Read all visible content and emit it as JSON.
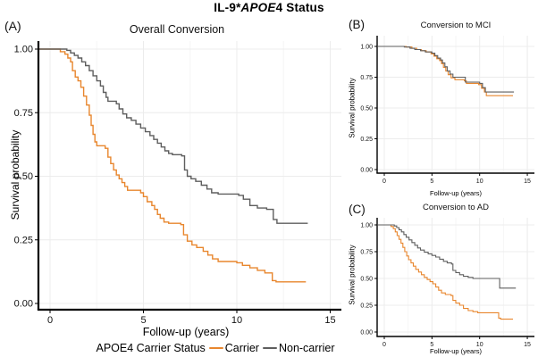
{
  "figure": {
    "title_prefix": "IL-9*",
    "title_italic": "APOE",
    "title_suffix": "4 Status"
  },
  "colors": {
    "carrier": "#E8862D",
    "noncarrier": "#5E5E5E",
    "grid_major": "#ECECEC",
    "grid_minor": "#F6F6F6",
    "axis": "#000000"
  },
  "legend": {
    "title": "APOE4 Carrier Status",
    "items": [
      {
        "label": "Carrier",
        "color_key": "carrier"
      },
      {
        "label": "Non-carrier",
        "color_key": "noncarrier"
      }
    ]
  },
  "chart_data": [
    {
      "id": "A",
      "panel_label": "(A)",
      "type": "line",
      "subtype": "kaplan-meier-step",
      "title": "Overall Conversion",
      "xlabel": "Follow-up (years)",
      "ylabel": "Survival probability",
      "xlim": [
        0,
        15
      ],
      "ylim": [
        0,
        1
      ],
      "grid": true,
      "xticks": [
        0,
        5,
        10,
        15
      ],
      "xtick_labels": [
        "0",
        "5",
        "10",
        "15"
      ],
      "yticks": [
        0,
        0.25,
        0.5,
        0.75,
        1.0
      ],
      "ytick_labels": [
        "0.00",
        "0.25",
        "0.50",
        "0.75",
        "1.00"
      ],
      "series": [
        {
          "name": "Carrier",
          "color_key": "carrier",
          "points": [
            [
              0,
              1.0
            ],
            [
              0.55,
              0.99
            ],
            [
              0.8,
              0.98
            ],
            [
              0.95,
              0.965
            ],
            [
              1.1,
              0.95
            ],
            [
              1.2,
              0.915
            ],
            [
              1.35,
              0.89
            ],
            [
              1.5,
              0.875
            ],
            [
              1.65,
              0.85
            ],
            [
              1.8,
              0.815
            ],
            [
              1.95,
              0.78
            ],
            [
              2.1,
              0.74
            ],
            [
              2.2,
              0.7
            ],
            [
              2.3,
              0.665
            ],
            [
              2.4,
              0.635
            ],
            [
              2.5,
              0.62
            ],
            [
              2.95,
              0.61
            ],
            [
              3.1,
              0.575
            ],
            [
              3.25,
              0.55
            ],
            [
              3.4,
              0.525
            ],
            [
              3.55,
              0.505
            ],
            [
              3.7,
              0.49
            ],
            [
              3.85,
              0.475
            ],
            [
              4.0,
              0.46
            ],
            [
              4.15,
              0.445
            ],
            [
              4.85,
              0.435
            ],
            [
              5.0,
              0.42
            ],
            [
              5.2,
              0.4
            ],
            [
              5.45,
              0.385
            ],
            [
              5.6,
              0.37
            ],
            [
              5.75,
              0.35
            ],
            [
              5.9,
              0.335
            ],
            [
              6.1,
              0.32
            ],
            [
              6.35,
              0.315
            ],
            [
              7.0,
              0.31
            ],
            [
              7.15,
              0.27
            ],
            [
              7.35,
              0.245
            ],
            [
              7.6,
              0.23
            ],
            [
              7.85,
              0.22
            ],
            [
              8.2,
              0.205
            ],
            [
              8.45,
              0.19
            ],
            [
              8.7,
              0.175
            ],
            [
              9.0,
              0.165
            ],
            [
              10.0,
              0.16
            ],
            [
              10.3,
              0.15
            ],
            [
              10.7,
              0.14
            ],
            [
              11.1,
              0.13
            ],
            [
              11.5,
              0.12
            ],
            [
              11.9,
              0.09
            ],
            [
              12.1,
              0.085
            ],
            [
              13.7,
              0.085
            ]
          ]
        },
        {
          "name": "Non-carrier",
          "color_key": "noncarrier",
          "points": [
            [
              0,
              1.0
            ],
            [
              0.9,
              0.995
            ],
            [
              1.1,
              0.985
            ],
            [
              1.3,
              0.975
            ],
            [
              1.5,
              0.965
            ],
            [
              1.7,
              0.95
            ],
            [
              1.9,
              0.935
            ],
            [
              2.1,
              0.915
            ],
            [
              2.3,
              0.895
            ],
            [
              2.5,
              0.875
            ],
            [
              2.7,
              0.855
            ],
            [
              2.85,
              0.83
            ],
            [
              3.0,
              0.81
            ],
            [
              3.1,
              0.795
            ],
            [
              3.55,
              0.785
            ],
            [
              3.7,
              0.765
            ],
            [
              3.9,
              0.745
            ],
            [
              4.1,
              0.73
            ],
            [
              4.35,
              0.72
            ],
            [
              4.6,
              0.705
            ],
            [
              4.85,
              0.69
            ],
            [
              5.1,
              0.675
            ],
            [
              5.35,
              0.66
            ],
            [
              5.55,
              0.645
            ],
            [
              5.75,
              0.63
            ],
            [
              5.95,
              0.615
            ],
            [
              6.15,
              0.6
            ],
            [
              6.35,
              0.59
            ],
            [
              6.55,
              0.585
            ],
            [
              7.05,
              0.58
            ],
            [
              7.2,
              0.525
            ],
            [
              7.35,
              0.5
            ],
            [
              7.55,
              0.49
            ],
            [
              7.8,
              0.48
            ],
            [
              8.1,
              0.465
            ],
            [
              8.4,
              0.45
            ],
            [
              8.65,
              0.435
            ],
            [
              9.0,
              0.43
            ],
            [
              10.1,
              0.425
            ],
            [
              10.35,
              0.41
            ],
            [
              10.7,
              0.385
            ],
            [
              11.1,
              0.375
            ],
            [
              11.6,
              0.37
            ],
            [
              11.95,
              0.33
            ],
            [
              12.15,
              0.315
            ],
            [
              13.8,
              0.315
            ]
          ]
        }
      ]
    },
    {
      "id": "B",
      "panel_label": "(B)",
      "type": "line",
      "subtype": "kaplan-meier-step",
      "title": "Conversion to MCI",
      "xlabel": "Follow-up (years)",
      "ylabel": "Survival probability",
      "xlim": [
        0,
        15
      ],
      "ylim": [
        0,
        1
      ],
      "grid": true,
      "xticks": [
        0,
        5,
        10,
        15
      ],
      "xtick_labels": [
        "0",
        "5",
        "10",
        "15"
      ],
      "yticks": [
        0,
        0.25,
        0.5,
        0.75,
        1.0
      ],
      "ytick_labels": [
        "0.00",
        "0.25",
        "0.50",
        "0.75",
        "1.00"
      ],
      "series": [
        {
          "name": "Carrier",
          "color_key": "carrier",
          "points": [
            [
              0,
              1.0
            ],
            [
              2.3,
              0.995
            ],
            [
              2.9,
              0.985
            ],
            [
              3.4,
              0.975
            ],
            [
              3.9,
              0.965
            ],
            [
              4.4,
              0.955
            ],
            [
              4.9,
              0.94
            ],
            [
              5.2,
              0.92
            ],
            [
              5.5,
              0.9
            ],
            [
              5.8,
              0.885
            ],
            [
              6.0,
              0.86
            ],
            [
              6.2,
              0.83
            ],
            [
              6.45,
              0.8
            ],
            [
              6.7,
              0.77
            ],
            [
              7.0,
              0.745
            ],
            [
              7.4,
              0.73
            ],
            [
              8.4,
              0.72
            ],
            [
              8.6,
              0.7
            ],
            [
              9.9,
              0.69
            ],
            [
              10.2,
              0.66
            ],
            [
              10.5,
              0.63
            ],
            [
              10.7,
              0.6
            ],
            [
              13.5,
              0.6
            ]
          ]
        },
        {
          "name": "Non-carrier",
          "color_key": "noncarrier",
          "points": [
            [
              0,
              1.0
            ],
            [
              2.1,
              0.995
            ],
            [
              2.7,
              0.985
            ],
            [
              3.2,
              0.975
            ],
            [
              3.8,
              0.965
            ],
            [
              4.3,
              0.955
            ],
            [
              5.0,
              0.945
            ],
            [
              5.3,
              0.925
            ],
            [
              5.6,
              0.905
            ],
            [
              5.9,
              0.89
            ],
            [
              6.1,
              0.865
            ],
            [
              6.35,
              0.835
            ],
            [
              6.6,
              0.8
            ],
            [
              6.9,
              0.775
            ],
            [
              7.2,
              0.75
            ],
            [
              8.5,
              0.71
            ],
            [
              10.0,
              0.7
            ],
            [
              10.3,
              0.665
            ],
            [
              10.6,
              0.63
            ],
            [
              13.6,
              0.63
            ]
          ]
        }
      ]
    },
    {
      "id": "C",
      "panel_label": "(C)",
      "type": "line",
      "subtype": "kaplan-meier-step",
      "title": "Conversion to AD",
      "xlabel": "Follow-up (years)",
      "ylabel": "Survival probability",
      "xlim": [
        0,
        15
      ],
      "ylim": [
        0,
        1
      ],
      "grid": true,
      "xticks": [
        0,
        5,
        10,
        15
      ],
      "xtick_labels": [
        "0",
        "5",
        "10",
        "15"
      ],
      "yticks": [
        0,
        0.25,
        0.5,
        0.75,
        1.0
      ],
      "ytick_labels": [
        "0.00",
        "0.25",
        "0.50",
        "0.75",
        "1.00"
      ],
      "series": [
        {
          "name": "Carrier",
          "color_key": "carrier",
          "points": [
            [
              0,
              1.0
            ],
            [
              0.7,
              0.985
            ],
            [
              0.95,
              0.965
            ],
            [
              1.15,
              0.935
            ],
            [
              1.35,
              0.9
            ],
            [
              1.55,
              0.865
            ],
            [
              1.75,
              0.83
            ],
            [
              1.95,
              0.79
            ],
            [
              2.15,
              0.75
            ],
            [
              2.35,
              0.71
            ],
            [
              2.55,
              0.675
            ],
            [
              2.8,
              0.645
            ],
            [
              3.05,
              0.615
            ],
            [
              3.3,
              0.585
            ],
            [
              3.6,
              0.56
            ],
            [
              3.9,
              0.535
            ],
            [
              4.2,
              0.51
            ],
            [
              4.5,
              0.49
            ],
            [
              4.8,
              0.47
            ],
            [
              5.1,
              0.45
            ],
            [
              5.4,
              0.42
            ],
            [
              5.7,
              0.39
            ],
            [
              6.0,
              0.365
            ],
            [
              6.4,
              0.35
            ],
            [
              7.0,
              0.34
            ],
            [
              7.2,
              0.295
            ],
            [
              7.5,
              0.27
            ],
            [
              7.9,
              0.25
            ],
            [
              8.3,
              0.22
            ],
            [
              8.8,
              0.2
            ],
            [
              9.3,
              0.19
            ],
            [
              9.8,
              0.18
            ],
            [
              11.7,
              0.18
            ],
            [
              12.0,
              0.13
            ],
            [
              12.2,
              0.12
            ],
            [
              13.5,
              0.12
            ]
          ]
        },
        {
          "name": "Non-carrier",
          "color_key": "noncarrier",
          "points": [
            [
              0,
              1.0
            ],
            [
              1.05,
              0.99
            ],
            [
              1.3,
              0.975
            ],
            [
              1.55,
              0.955
            ],
            [
              1.8,
              0.935
            ],
            [
              2.05,
              0.91
            ],
            [
              2.3,
              0.885
            ],
            [
              2.6,
              0.86
            ],
            [
              2.9,
              0.835
            ],
            [
              3.2,
              0.81
            ],
            [
              3.5,
              0.785
            ],
            [
              3.8,
              0.765
            ],
            [
              4.2,
              0.745
            ],
            [
              4.6,
              0.73
            ],
            [
              5.0,
              0.715
            ],
            [
              5.4,
              0.7
            ],
            [
              5.8,
              0.68
            ],
            [
              6.2,
              0.66
            ],
            [
              6.6,
              0.645
            ],
            [
              7.05,
              0.635
            ],
            [
              7.2,
              0.575
            ],
            [
              7.5,
              0.555
            ],
            [
              7.9,
              0.535
            ],
            [
              8.3,
              0.52
            ],
            [
              8.8,
              0.51
            ],
            [
              9.3,
              0.5
            ],
            [
              11.9,
              0.5
            ],
            [
              12.1,
              0.41
            ],
            [
              13.8,
              0.41
            ]
          ]
        }
      ]
    }
  ]
}
